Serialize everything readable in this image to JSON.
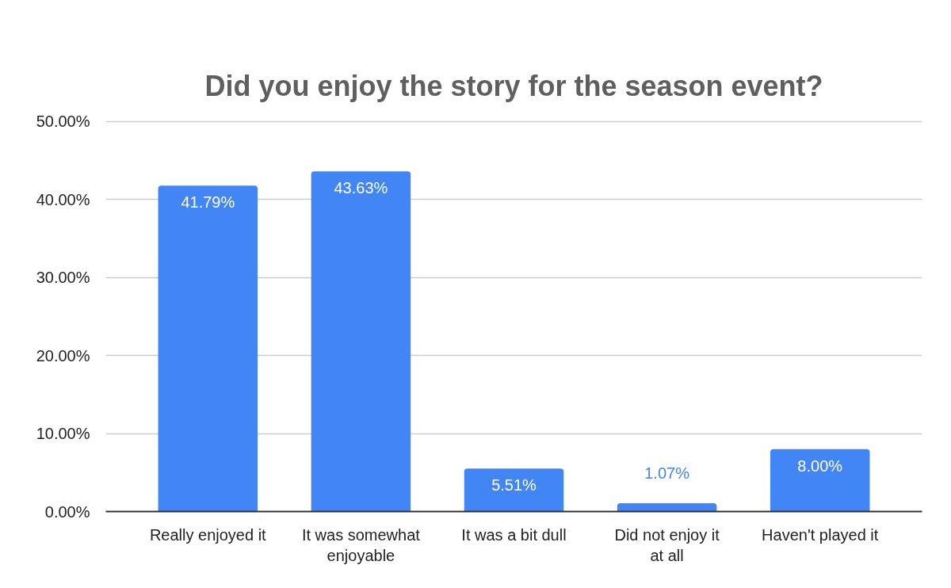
{
  "chart_data": {
    "type": "bar",
    "title": "Did you enjoy the story for the season event?",
    "categories": [
      "Really enjoyed it",
      "It was somewhat enjoyable",
      "It was a bit dull",
      "Did not enjoy it at all",
      "Haven't played it"
    ],
    "values": [
      41.79,
      43.63,
      5.51,
      1.07,
      8.0
    ],
    "value_labels": [
      "41.79%",
      "43.63%",
      "5.51%",
      "1.07%",
      "8.00%"
    ],
    "color": "#4285f4",
    "ylim": [
      0,
      50
    ],
    "yticks": [
      {
        "value": 0,
        "label": "0.00%"
      },
      {
        "value": 10,
        "label": "10.00%"
      },
      {
        "value": 20,
        "label": "20.00%"
      },
      {
        "value": 30,
        "label": "30.00%"
      },
      {
        "value": 40,
        "label": "40.00%"
      },
      {
        "value": 50,
        "label": "50.00%"
      }
    ],
    "grid": "y"
  }
}
